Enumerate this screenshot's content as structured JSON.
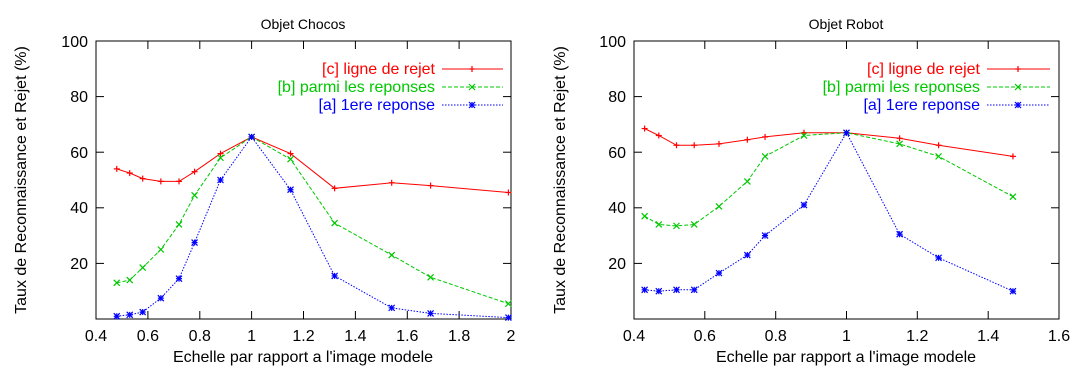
{
  "chart_data": [
    {
      "type": "line",
      "title": "Objet Chocos",
      "xlabel": "Echelle par rapport a l'image modele",
      "ylabel": "Taux de Reconnaissance et Rejet (%)",
      "xlim": [
        0.4,
        2.0
      ],
      "ylim": [
        0,
        100
      ],
      "xticks": [
        "0.4",
        "0.6",
        "0.8",
        "1",
        "1.2",
        "1.4",
        "1.6",
        "1.8",
        "2"
      ],
      "yticks": [
        "20",
        "40",
        "60",
        "80",
        "100"
      ],
      "legend_position": "top-right",
      "grid": false,
      "series": [
        {
          "name": "[c] ligne de rejet",
          "color": "#ff0000",
          "marker": "plus",
          "dash": "solid",
          "x": [
            0.48,
            0.53,
            0.58,
            0.65,
            0.72,
            0.78,
            0.88,
            1.0,
            1.15,
            1.32,
            1.54,
            1.69,
            1.99
          ],
          "y": [
            54,
            52.5,
            50.5,
            49.5,
            49.5,
            53,
            59.5,
            65.5,
            59.5,
            47,
            49,
            48,
            45.5
          ]
        },
        {
          "name": "[b] parmi les reponses",
          "color": "#00c800",
          "marker": "x",
          "dash": "dashed",
          "x": [
            0.48,
            0.53,
            0.58,
            0.65,
            0.72,
            0.78,
            0.88,
            1.0,
            1.15,
            1.32,
            1.54,
            1.69,
            1.99
          ],
          "y": [
            13,
            14,
            18.5,
            25,
            34,
            44.5,
            58,
            65.5,
            57.5,
            34.5,
            23,
            15,
            5.5
          ]
        },
        {
          "name": "[a] 1ere reponse",
          "color": "#0000ff",
          "marker": "star",
          "dash": "dotted",
          "x": [
            0.48,
            0.53,
            0.58,
            0.65,
            0.72,
            0.78,
            0.88,
            1.0,
            1.15,
            1.32,
            1.54,
            1.69,
            1.99
          ],
          "y": [
            1,
            1.5,
            2.5,
            7.5,
            14.5,
            27.5,
            50,
            65.5,
            46.5,
            15.5,
            4,
            2,
            0.5
          ]
        }
      ]
    },
    {
      "type": "line",
      "title": "Objet Robot",
      "xlabel": "Echelle par rapport a l'image modele",
      "ylabel": "Taux de Reconnaissance et Rejet (%)",
      "xlim": [
        0.4,
        1.6
      ],
      "ylim": [
        0,
        100
      ],
      "xticks": [
        "0.4",
        "0.6",
        "0.8",
        "1",
        "1.2",
        "1.4",
        "1.6"
      ],
      "yticks": [
        "20",
        "40",
        "60",
        "80",
        "100"
      ],
      "legend_position": "top-right",
      "grid": false,
      "series": [
        {
          "name": "[c] ligne de rejet",
          "color": "#ff0000",
          "marker": "plus",
          "dash": "solid",
          "x": [
            0.43,
            0.47,
            0.52,
            0.57,
            0.64,
            0.72,
            0.77,
            0.88,
            1.0,
            1.15,
            1.26,
            1.47
          ],
          "y": [
            68.5,
            66,
            62.5,
            62.5,
            63,
            64.5,
            65.5,
            67,
            67,
            65,
            62.5,
            58.5
          ]
        },
        {
          "name": "[b] parmi les reponses",
          "color": "#00c800",
          "marker": "x",
          "dash": "dashed",
          "x": [
            0.43,
            0.47,
            0.52,
            0.57,
            0.64,
            0.72,
            0.77,
            0.88,
            1.0,
            1.15,
            1.26,
            1.47
          ],
          "y": [
            37,
            34,
            33.5,
            34,
            40.5,
            49.5,
            58.5,
            66,
            67,
            63,
            58.5,
            44
          ]
        },
        {
          "name": "[a] 1ere reponse",
          "color": "#0000ff",
          "marker": "star",
          "dash": "dotted",
          "x": [
            0.43,
            0.47,
            0.52,
            0.57,
            0.64,
            0.72,
            0.77,
            0.88,
            1.0,
            1.15,
            1.26,
            1.47
          ],
          "y": [
            10.5,
            10,
            10.5,
            10.5,
            16.5,
            23,
            30,
            41,
            67,
            30.5,
            22,
            10
          ]
        }
      ]
    }
  ]
}
